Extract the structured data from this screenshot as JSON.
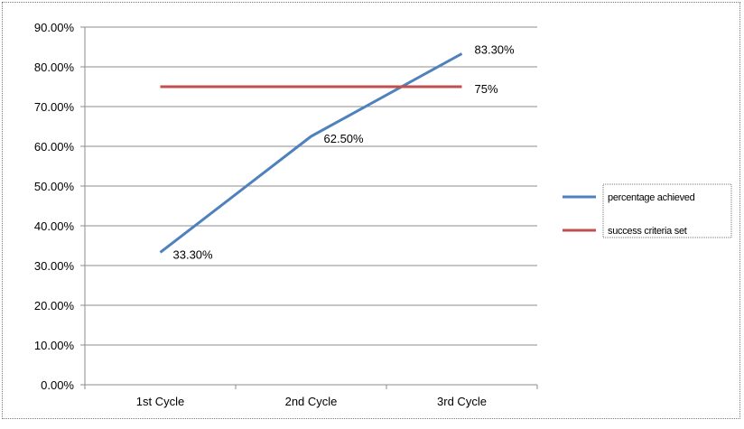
{
  "chart_data": {
    "type": "line",
    "categories": [
      "1st Cycle",
      "2nd Cycle",
      "3rd Cycle"
    ],
    "series": [
      {
        "name": "percentage achieved",
        "values": [
          33.3,
          62.5,
          83.3
        ],
        "color": "#4f81bd",
        "data_labels": [
          "33.30%",
          "62.50%",
          "83.30%"
        ]
      },
      {
        "name": "success criteria set",
        "values": [
          75,
          75,
          75
        ],
        "color": "#c0504d",
        "data_labels": [
          "",
          "",
          "75%"
        ]
      }
    ],
    "y_tick_labels": [
      "0.00%",
      "10.00%",
      "20.00%",
      "30.00%",
      "40.00%",
      "50.00%",
      "60.00%",
      "70.00%",
      "80.00%",
      "90.00%"
    ],
    "ylim": [
      0,
      90
    ],
    "y_tick_step": 10,
    "grid": true,
    "legend": "right",
    "title": "",
    "xlabel": "",
    "ylabel": ""
  }
}
